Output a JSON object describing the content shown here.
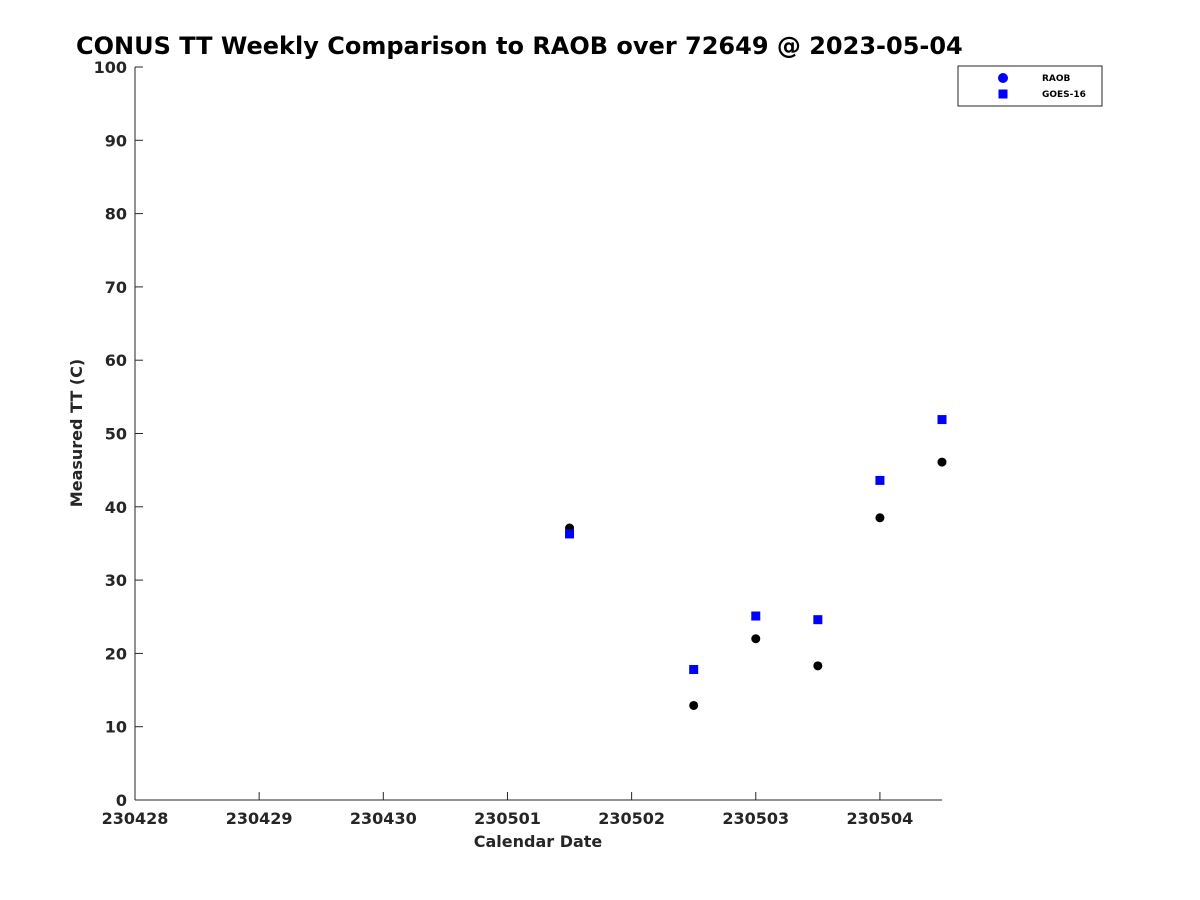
{
  "chart_data": {
    "type": "scatter",
    "title": "CONUS TT Weekly Comparison to RAOB over 72649 @ 2023-05-04",
    "xlabel": "Calendar Date",
    "ylabel": "Measured TT (C)",
    "x_ticks": [
      "230428",
      "230429",
      "230430",
      "230501",
      "230502",
      "230503",
      "230504"
    ],
    "xlim_days": [
      0,
      6.5
    ],
    "ylim": [
      0,
      100
    ],
    "y_ticks": [
      0,
      10,
      20,
      30,
      40,
      50,
      60,
      70,
      80,
      90,
      100
    ],
    "grid": false,
    "legend_position": "top-right",
    "series": [
      {
        "name": "RAOB",
        "marker": "circle",
        "color": "#000000",
        "legend_color": "#0000ff",
        "points": [
          {
            "x": "230501 12Z",
            "xd": 3.5,
            "y": 37.1
          },
          {
            "x": "230502 12Z",
            "xd": 4.5,
            "y": 12.9
          },
          {
            "x": "230503 00Z",
            "xd": 5.0,
            "y": 22.0
          },
          {
            "x": "230503 12Z",
            "xd": 5.5,
            "y": 18.3
          },
          {
            "x": "230504 00Z",
            "xd": 6.0,
            "y": 38.5
          },
          {
            "x": "230504 12Z",
            "xd": 6.5,
            "y": 46.1
          }
        ]
      },
      {
        "name": "GOES-16",
        "marker": "square",
        "color": "#0000ff",
        "legend_color": "#0000ff",
        "points": [
          {
            "x": "230501 12Z",
            "xd": 3.5,
            "y": 36.3
          },
          {
            "x": "230502 12Z",
            "xd": 4.5,
            "y": 17.8
          },
          {
            "x": "230503 00Z",
            "xd": 5.0,
            "y": 25.1
          },
          {
            "x": "230503 12Z",
            "xd": 5.5,
            "y": 24.6
          },
          {
            "x": "230504 00Z",
            "xd": 6.0,
            "y": 43.6
          },
          {
            "x": "230504 12Z",
            "xd": 6.5,
            "y": 51.9
          }
        ]
      }
    ]
  }
}
